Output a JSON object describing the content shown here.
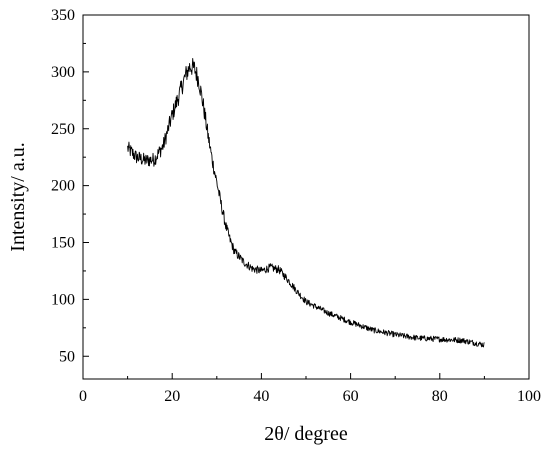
{
  "chart_data": {
    "type": "line",
    "title": "",
    "xlabel": "2θ/ degree",
    "ylabel": "Intensity/ a.u.",
    "xlim": [
      0,
      100
    ],
    "ylim": [
      30,
      350
    ],
    "xticks": [
      0,
      20,
      40,
      60,
      80,
      100
    ],
    "yticks": [
      50,
      100,
      150,
      200,
      250,
      300,
      350
    ],
    "grid": false,
    "legend": "none",
    "line_color": "#000000",
    "series": [
      {
        "x": [
          10,
          12,
          14,
          16,
          18,
          20,
          22,
          23,
          24,
          25,
          26,
          27,
          28,
          29,
          30,
          31,
          32,
          33,
          34,
          36,
          38,
          40,
          42,
          44,
          46,
          48,
          50,
          55,
          60,
          65,
          70,
          75,
          80,
          85,
          90
        ],
        "y": [
          233,
          225,
          222,
          223,
          235,
          262,
          285,
          297,
          305,
          303,
          292,
          270,
          245,
          222,
          203,
          183,
          165,
          152,
          142,
          133,
          127,
          125,
          128,
          126,
          117,
          107,
          98,
          88,
          80,
          73,
          69,
          66,
          65,
          64,
          60
        ]
      }
    ]
  }
}
